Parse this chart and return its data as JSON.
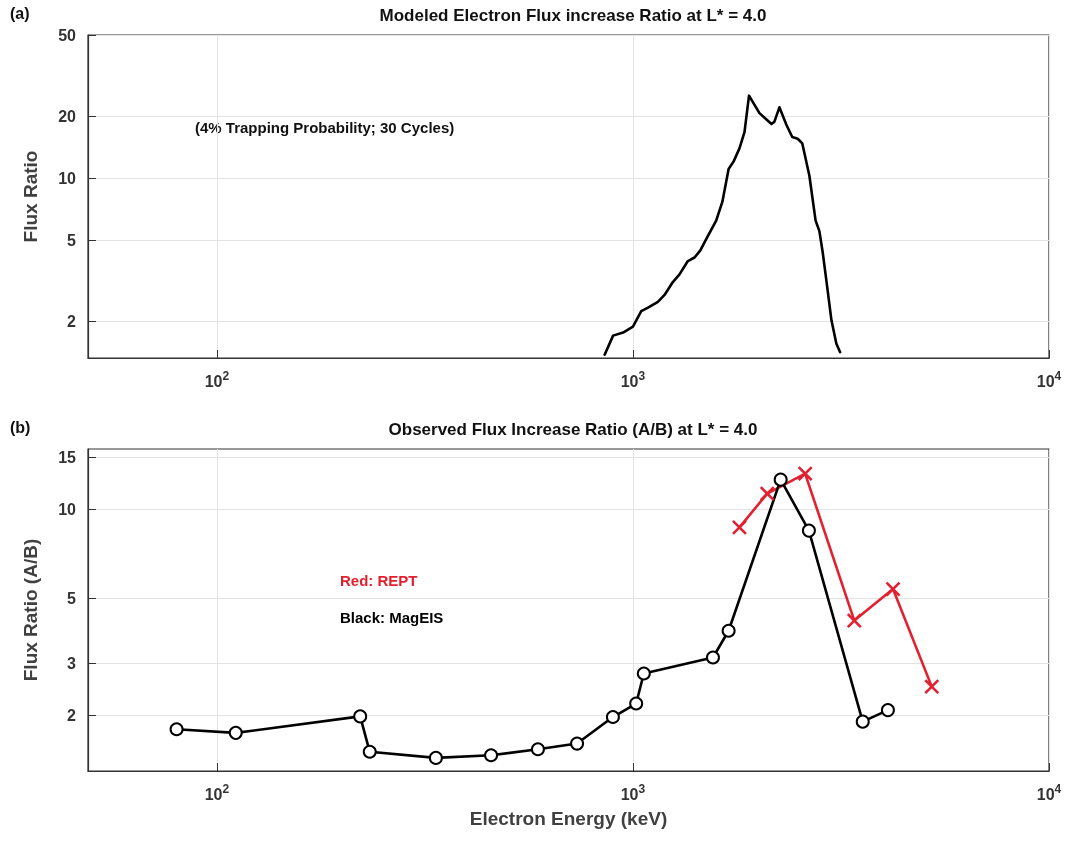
{
  "chart_data": [
    {
      "type": "line",
      "title": "Modeled Electron Flux increase Ratio at L* = 4.0",
      "ylabel": "Flux Ratio",
      "annotations": [
        "(a)",
        "(4% Trapping Probability; 30 Cycles)"
      ],
      "log": "xy",
      "grid": true,
      "legend": false,
      "marker": "none",
      "line_style": "solid",
      "xlim": [
        49,
        10000
      ],
      "xticks": [
        {
          "value": 100,
          "label": "10$^{2}$"
        },
        {
          "value": 1000,
          "label": "10$^{3}$"
        },
        {
          "value": 10000,
          "label": "10$^{4}$"
        }
      ],
      "ylim": [
        1.33,
        50
      ],
      "yticks": [
        2,
        5,
        10,
        20,
        50
      ],
      "series": [
        {
          "color": "#000000",
          "x": [
            855,
            896,
            947,
            1000,
            1047,
            1087,
            1148,
            1191,
            1247,
            1294,
            1355,
            1406,
            1452,
            1500,
            1585,
            1640,
            1698,
            1746,
            1803,
            1854,
            1901,
            2014,
            2153,
            2188,
            2249,
            2339,
            2415,
            2489,
            2553,
            2655,
            2748,
            2806,
            2858,
            2917,
            3000,
            3083,
            3148
          ],
          "values": [
            1.38,
            1.71,
            1.77,
            1.89,
            2.25,
            2.34,
            2.5,
            2.7,
            3.12,
            3.4,
            3.95,
            4.11,
            4.45,
            5.05,
            6.22,
            7.67,
            11.1,
            12.1,
            14.0,
            16.8,
            25.3,
            20.8,
            18.4,
            18.9,
            22.2,
            18.2,
            15.9,
            15.6,
            14.8,
            10.3,
            6.22,
            5.53,
            4.36,
            3.17,
            2.03,
            1.56,
            1.42
          ]
        }
      ]
    },
    {
      "type": "line",
      "title": "Observed Flux Increase Ratio (A/B) at L* = 4.0",
      "xlabel": "Electron Energy (keV)",
      "ylabel": "Flux Ratio (A/B)",
      "annotations": [
        "(b)"
      ],
      "log": "xy",
      "grid": true,
      "legend": "left",
      "line_style": "solid",
      "xlim": [
        49,
        10000
      ],
      "xticks": [
        {
          "value": 100,
          "label": "10$^{2}$"
        },
        {
          "value": 1000,
          "label": "10$^{3}$"
        },
        {
          "value": 10000,
          "label": "10$^{4}$"
        }
      ],
      "ylim": [
        1.3,
        16
      ],
      "yticks": [
        2,
        3,
        5,
        10,
        15
      ],
      "series": [
        {
          "name": "Red: REPT",
          "color": "#e3202f",
          "marker": "cross",
          "x": [
            1803,
            2103,
            2594,
            3404,
            4218,
            5226
          ],
          "values": [
            8.69,
            11.3,
            13.2,
            4.2,
            5.37,
            2.51
          ]
        },
        {
          "name": "Black: MagEIS",
          "color": "#000000",
          "marker": "circle",
          "x": [
            80,
            111,
            221,
            233,
            336,
            456,
            591,
            734,
            895,
            1018,
            1062,
            1557,
            1698,
            2265,
            2648,
            3567,
            4100
          ],
          "values": [
            1.8,
            1.75,
            1.99,
            1.51,
            1.44,
            1.47,
            1.54,
            1.61,
            1.98,
            2.2,
            2.78,
            3.15,
            3.88,
            12.6,
            8.47,
            1.91,
            2.09
          ]
        }
      ]
    }
  ]
}
